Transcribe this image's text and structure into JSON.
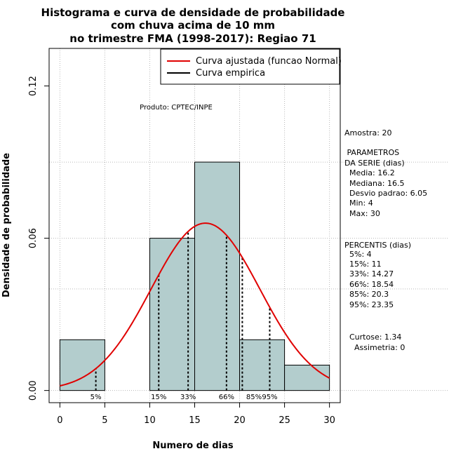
{
  "chart_data": {
    "type": "histogram",
    "title_lines": [
      "Histograma e curva de densidade de probabilidade",
      "com chuva acima de 10 mm",
      "no trimestre FMA (1998-2017): Regiao 71"
    ],
    "xlabel": "Numero de dias",
    "ylabel": "Densidade de probabilidade",
    "xlim": [
      -1.2,
      31.2
    ],
    "ylim": [
      -0.0048,
      0.1348
    ],
    "x_ticks": [
      "0",
      "5",
      "10",
      "15",
      "20",
      "25",
      "30"
    ],
    "y_ticks": [
      "0.00",
      "0.06",
      "0.12"
    ],
    "bins": [
      {
        "x0": 0,
        "x1": 5,
        "density": 0.02
      },
      {
        "x0": 5,
        "x1": 10,
        "density": 0.0
      },
      {
        "x0": 10,
        "x1": 15,
        "density": 0.06
      },
      {
        "x0": 15,
        "x1": 20,
        "density": 0.09
      },
      {
        "x0": 20,
        "x1": 25,
        "density": 0.02
      },
      {
        "x0": 25,
        "x1": 30,
        "density": 0.01
      }
    ],
    "fitted_curve": {
      "distribution": "normal",
      "mean": 16.2,
      "sd": 6.05,
      "x_range": [
        0,
        30
      ],
      "color": "#e00000"
    },
    "bar_fill": "#b3cdcd",
    "grid": true,
    "legend": {
      "position": "top-right",
      "entries": [
        {
          "label": "Curva ajustada (funcao Normal)",
          "color": "#e00000"
        },
        {
          "label": "Curva empirica",
          "color": "#000000"
        }
      ]
    },
    "percentile_markers": [
      {
        "label": "5%",
        "x": 4
      },
      {
        "label": "15%",
        "x": 11
      },
      {
        "label": "33%",
        "x": 14.27
      },
      {
        "label": "66%",
        "x": 18.54
      },
      {
        "label": "85%",
        "x": 20.3
      },
      {
        "label": "95%",
        "x": 23.35
      }
    ],
    "product_note": "Produto: CPTEC/INPE",
    "side_text": [
      "Amostra: 20",
      " PARAMETROS",
      "DA SERIE (dias)",
      "  Media: 16.2",
      "  Mediana: 16.5",
      "  Desvio padrao: 6.05",
      "  Min: 4",
      "  Max: 30",
      "PERCENTIS (dias)",
      "  5%: 4",
      "  15%: 11",
      "  33%: 14.27",
      "  66%: 18.54",
      "  85%: 20.3",
      "  95%: 23.35",
      "Curtose: 1.34",
      "  Assimetria: 0"
    ]
  }
}
